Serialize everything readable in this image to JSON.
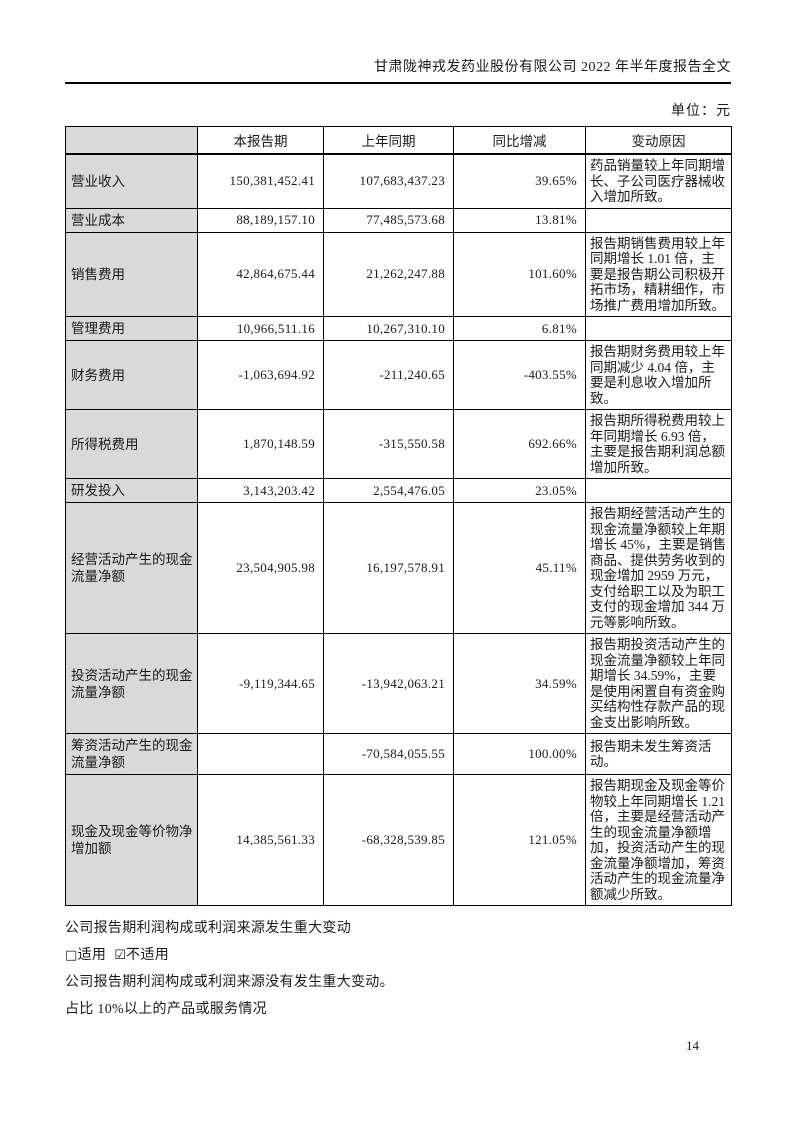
{
  "page": {
    "header_title": "甘肃陇神戎发药业股份有限公司 2022 年半年度报告全文",
    "unit_label": "单位：元",
    "page_number": "14"
  },
  "table": {
    "columns": {
      "label": "",
      "current": "本报告期",
      "prior": "上年同期",
      "change": "同比增减",
      "reason": "变动原因"
    },
    "rows": [
      {
        "label": "营业收入",
        "current": "150,381,452.41",
        "prior": "107,683,437.23",
        "change": "39.65%",
        "reason": "药品销量较上年同期增长、子公司医疗器械收入增加所致。"
      },
      {
        "label": "营业成本",
        "current": "88,189,157.10",
        "prior": "77,485,573.68",
        "change": "13.81%",
        "reason": ""
      },
      {
        "label": "销售费用",
        "current": "42,864,675.44",
        "prior": "21,262,247.88",
        "change": "101.60%",
        "reason": "报告期销售费用较上年同期增长 1.01 倍，主要是报告期公司积极开拓市场，精耕细作，市场推广费用增加所致。"
      },
      {
        "label": "管理费用",
        "current": "10,966,511.16",
        "prior": "10,267,310.10",
        "change": "6.81%",
        "reason": ""
      },
      {
        "label": "财务费用",
        "current": "-1,063,694.92",
        "prior": "-211,240.65",
        "change": "-403.55%",
        "reason": "报告期财务费用较上年同期减少 4.04 倍，主要是利息收入增加所致。"
      },
      {
        "label": "所得税费用",
        "current": "1,870,148.59",
        "prior": "-315,550.58",
        "change": "692.66%",
        "reason": "报告期所得税费用较上年同期增长 6.93 倍，主要是报告期利润总额增加所致。"
      },
      {
        "label": "研发投入",
        "current": "3,143,203.42",
        "prior": "2,554,476.05",
        "change": "23.05%",
        "reason": ""
      },
      {
        "label": "经营活动产生的现金流量净额",
        "current": "23,504,905.98",
        "prior": "16,197,578.91",
        "change": "45.11%",
        "reason": "报告期经营活动产生的现金流量净额较上年期增长 45%，主要是销售商品、提供劳务收到的现金增加 2959 万元，支付给职工以及为职工支付的现金增加 344 万元等影响所致。"
      },
      {
        "label": "投资活动产生的现金流量净额",
        "current": "-9,119,344.65",
        "prior": "-13,942,063.21",
        "change": "34.59%",
        "reason": "报告期投资活动产生的现金流量净额较上年同期增长 34.59%，主要是使用闲置自有资金购买结构性存款产品的现金支出影响所致。"
      },
      {
        "label": "筹资活动产生的现金流量净额",
        "current": "",
        "prior": "-70,584,055.55",
        "change": "100.00%",
        "reason": "报告期未发生筹资活动。"
      },
      {
        "label": "现金及现金等价物净增加额",
        "current": "14,385,561.33",
        "prior": "-68,328,539.85",
        "change": "121.05%",
        "reason": "报告期现金及现金等价物较上年同期增长 1.21 倍，主要是经营活动产生的现金流量净额增加，投资活动产生的现金流量净额增加，筹资活动产生的现金流量净额减少所致。"
      }
    ]
  },
  "footer": {
    "major_change_heading": "公司报告期利润构成或利润来源发生重大变动",
    "checkbox_unchecked_icon": "□",
    "applicable_label": "适用",
    "checkbox_checked_icon": "☑",
    "not_applicable_label": "不适用",
    "no_change_statement": "公司报告期利润构成或利润来源没有发生重大变动。",
    "products_heading": "占比 10%以上的产品或服务情况"
  }
}
